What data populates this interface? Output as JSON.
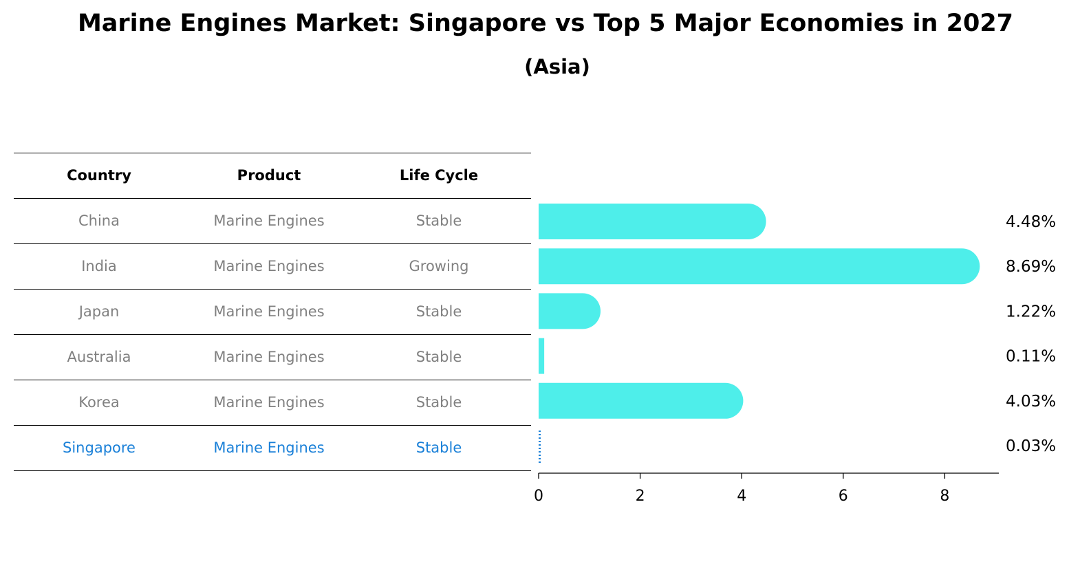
{
  "title": "Marine Engines Market: Singapore vs Top 5 Major Economies in 2027",
  "subtitle": "(Asia)",
  "table": {
    "columns": [
      "Country",
      "Product",
      "Life Cycle"
    ],
    "rows": [
      {
        "country": "China",
        "product": "Marine Engines",
        "life_cycle": "Stable"
      },
      {
        "country": "India",
        "product": "Marine Engines",
        "life_cycle": "Growing"
      },
      {
        "country": "Japan",
        "product": "Marine Engines",
        "life_cycle": "Stable"
      },
      {
        "country": "Australia",
        "product": "Marine Engines",
        "life_cycle": "Stable"
      },
      {
        "country": "Korea",
        "product": "Marine Engines",
        "life_cycle": "Stable"
      },
      {
        "country": "Singapore",
        "product": "Marine Engines",
        "life_cycle": "Stable"
      }
    ],
    "highlight_row": "Singapore"
  },
  "colors": {
    "bar": "#4eeeea",
    "highlight": "#1a80d8",
    "muted_text": "#808080"
  },
  "chart_data": {
    "type": "bar",
    "orientation": "horizontal",
    "categories": [
      "China",
      "India",
      "Japan",
      "Australia",
      "Korea",
      "Singapore"
    ],
    "values": [
      4.48,
      8.69,
      1.22,
      0.11,
      4.03,
      0.03
    ],
    "value_labels": [
      "4.48%",
      "8.69%",
      "1.22%",
      "0.11%",
      "4.03%",
      "0.03%"
    ],
    "xlim": [
      0,
      9.1
    ],
    "xticks": [
      0,
      2,
      4,
      6,
      8
    ],
    "xlabel": "",
    "ylabel": "",
    "grid": false,
    "legend": "none"
  }
}
